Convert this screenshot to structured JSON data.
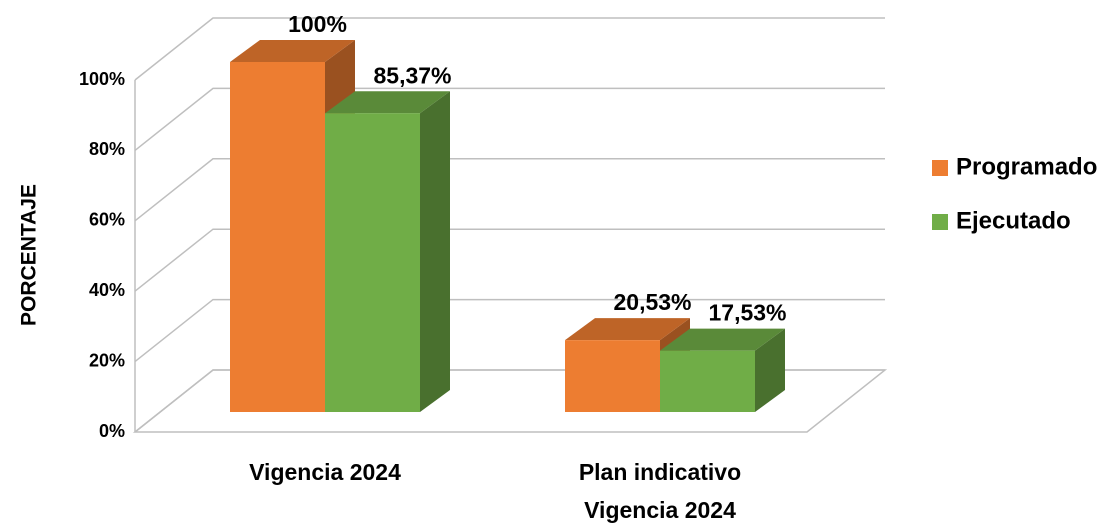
{
  "chart_data": {
    "type": "bar3d",
    "categories": [
      "Vigencia 2024",
      "Plan indicativo Vigencia 2024"
    ],
    "series": [
      {
        "name": "Programado",
        "color": "#ED7D31",
        "values": [
          100,
          20.53
        ],
        "value_labels": [
          "100%",
          "20,53%"
        ]
      },
      {
        "name": "Ejecutado",
        "color": "#70AD47",
        "values": [
          85.37,
          17.53
        ],
        "value_labels": [
          "85,37%",
          "17,53%"
        ]
      }
    ],
    "y_label": "PORCENTAJE",
    "ylim": [
      0,
      100
    ],
    "yticks": [
      {
        "value": 0,
        "label": "0%"
      },
      {
        "value": 20,
        "label": "20%"
      },
      {
        "value": 40,
        "label": "40%"
      },
      {
        "value": 60,
        "label": "60%"
      },
      {
        "value": 80,
        "label": "80%"
      },
      {
        "value": 100,
        "label": "100%"
      }
    ],
    "grid": true,
    "legend": "right"
  }
}
